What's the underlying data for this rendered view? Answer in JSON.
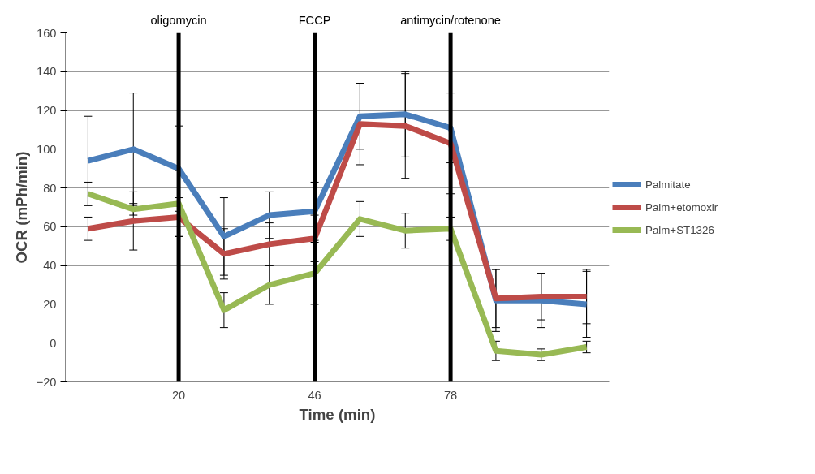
{
  "chart_data": {
    "type": "line",
    "xlabel": "Time (min)",
    "ylabel": "OCR (mPh/min)",
    "categories": [
      null,
      null,
      "20",
      null,
      null,
      "46",
      null,
      null,
      "78",
      null,
      null,
      null
    ],
    "series": [
      {
        "name": "Palmitate",
        "color": "#4a7ebb",
        "values": [
          94,
          100,
          90,
          55,
          66,
          68,
          117,
          118,
          111,
          22,
          22,
          20
        ],
        "errors": [
          23,
          29,
          22,
          20,
          12,
          15,
          17,
          22,
          18,
          16,
          14,
          17
        ]
      },
      {
        "name": "Palm+etomoxir",
        "color": "#be4b48",
        "values": [
          59,
          63,
          65,
          46,
          51,
          54,
          113,
          112,
          103,
          23,
          24,
          24
        ],
        "errors": [
          6,
          15,
          10,
          13,
          11,
          12,
          21,
          27,
          26,
          15,
          12,
          14
        ]
      },
      {
        "name": "Palm+ST1326",
        "color": "#98b954",
        "values": [
          77,
          69,
          72,
          17,
          30,
          36,
          64,
          58,
          59,
          -4,
          -6,
          -2
        ],
        "errors": [
          6,
          3,
          17,
          9,
          10,
          16,
          9,
          9,
          6,
          5,
          3,
          3
        ]
      }
    ],
    "ylim": [
      -20,
      160
    ],
    "yticks": [
      -20,
      0,
      20,
      40,
      60,
      80,
      100,
      120,
      140,
      160
    ],
    "grid": "y",
    "legend": "right",
    "marker": "none",
    "line_style": "solid",
    "ref_lines": [
      {
        "axis": "x",
        "value": "20",
        "label": "oligomycin",
        "color": "#000000"
      },
      {
        "axis": "x",
        "value": "46",
        "label": "FCCP",
        "color": "#000000"
      },
      {
        "axis": "x",
        "value": "78",
        "label": "antimycin/rotenone",
        "color": "#000000"
      }
    ]
  }
}
